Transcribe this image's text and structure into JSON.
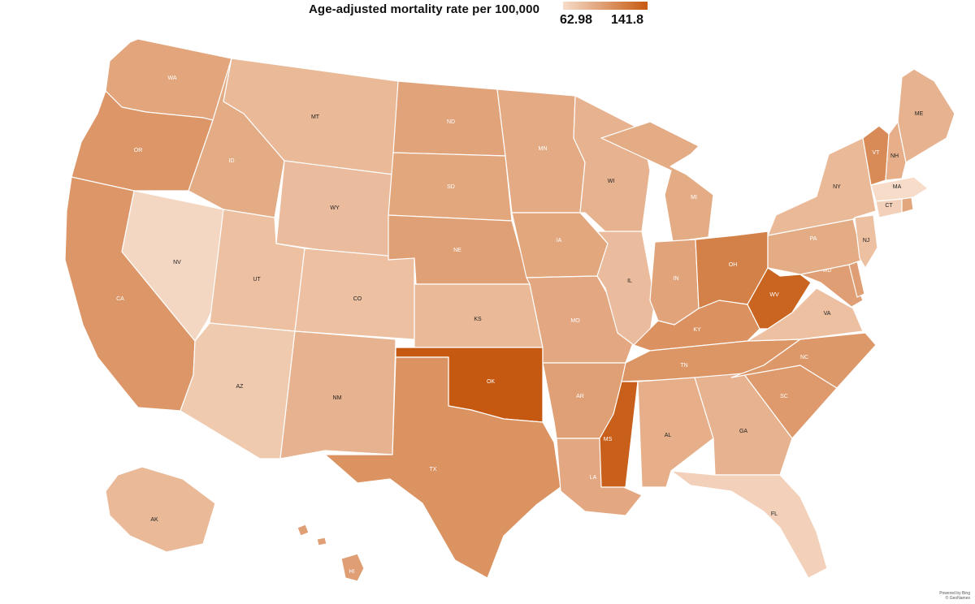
{
  "legend": {
    "title": "Age-adjusted mortality rate per 100,000",
    "min_label": "62.98",
    "max_label": "141.8",
    "min": 62.98,
    "max": 141.8,
    "min_color": "#f6dcc9",
    "max_color": "#c65911"
  },
  "credit": {
    "line1": "Powered by Bing",
    "line2": "© GeoNames"
  },
  "states": [
    {
      "abbr": "WA",
      "value": 96
    },
    {
      "abbr": "OR",
      "value": 105
    },
    {
      "abbr": "CA",
      "value": 105
    },
    {
      "abbr": "NV",
      "value": 66
    },
    {
      "abbr": "ID",
      "value": 92
    },
    {
      "abbr": "MT",
      "value": 84
    },
    {
      "abbr": "WY",
      "value": 82
    },
    {
      "abbr": "UT",
      "value": 80
    },
    {
      "abbr": "AZ",
      "value": 74
    },
    {
      "abbr": "CO",
      "value": 80
    },
    {
      "abbr": "NM",
      "value": 88
    },
    {
      "abbr": "ND",
      "value": 97
    },
    {
      "abbr": "SD",
      "value": 95
    },
    {
      "abbr": "NE",
      "value": 99
    },
    {
      "abbr": "KS",
      "value": 84
    },
    {
      "abbr": "OK",
      "value": 141.8
    },
    {
      "abbr": "TX",
      "value": 107
    },
    {
      "abbr": "MN",
      "value": 93
    },
    {
      "abbr": "IA",
      "value": 95
    },
    {
      "abbr": "MO",
      "value": 94
    },
    {
      "abbr": "AR",
      "value": 99
    },
    {
      "abbr": "LA",
      "value": 94
    },
    {
      "abbr": "WI",
      "value": 88
    },
    {
      "abbr": "IL",
      "value": 82
    },
    {
      "abbr": "MI",
      "value": 92
    },
    {
      "abbr": "IN",
      "value": 97
    },
    {
      "abbr": "OH",
      "value": 118
    },
    {
      "abbr": "KY",
      "value": 108
    },
    {
      "abbr": "TN",
      "value": 106
    },
    {
      "abbr": "MS",
      "value": 138
    },
    {
      "abbr": "AL",
      "value": 90
    },
    {
      "abbr": "GA",
      "value": 88
    },
    {
      "abbr": "FL",
      "value": 70
    },
    {
      "abbr": "SC",
      "value": 103
    },
    {
      "abbr": "NC",
      "value": 104
    },
    {
      "abbr": "VA",
      "value": 80
    },
    {
      "abbr": "WV",
      "value": 135
    },
    {
      "abbr": "MD",
      "value": 100
    },
    {
      "abbr": "DE",
      "value": 100
    },
    {
      "abbr": "PA",
      "value": 92
    },
    {
      "abbr": "NJ",
      "value": 80
    },
    {
      "abbr": "NY",
      "value": 84
    },
    {
      "abbr": "CT",
      "value": 70
    },
    {
      "abbr": "RI",
      "value": 95
    },
    {
      "abbr": "MA",
      "value": 63
    },
    {
      "abbr": "VT",
      "value": 112
    },
    {
      "abbr": "NH",
      "value": 90
    },
    {
      "abbr": "ME",
      "value": 88
    },
    {
      "abbr": "AK",
      "value": 84
    },
    {
      "abbr": "HI",
      "value": 100
    }
  ]
}
